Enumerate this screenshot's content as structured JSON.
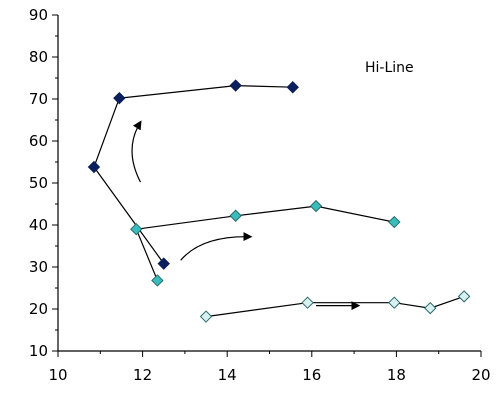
{
  "chart_data": {
    "type": "scatter",
    "title": "",
    "xlabel": "",
    "ylabel": "",
    "xlim": [
      10,
      20
    ],
    "ylim": [
      10,
      90
    ],
    "x_ticks": [
      10,
      12,
      14,
      16,
      18,
      20
    ],
    "y_ticks": [
      10,
      20,
      30,
      40,
      50,
      60,
      70,
      80,
      90
    ],
    "grid": false,
    "legend": "none",
    "annotation": "Hi-Line",
    "series": [
      {
        "color": "#0b1f5c",
        "marker": "diamond-filled",
        "points": [
          [
            12.5,
            30.8
          ],
          [
            10.85,
            53.8
          ],
          [
            11.45,
            70.2
          ],
          [
            14.2,
            73.2
          ],
          [
            15.55,
            72.8
          ]
        ]
      },
      {
        "color": "#3bbcbc",
        "marker": "diamond-filled",
        "points": [
          [
            12.35,
            26.8
          ],
          [
            11.85,
            39.0
          ],
          [
            14.2,
            42.2
          ],
          [
            16.1,
            44.5
          ],
          [
            17.95,
            40.7
          ]
        ]
      },
      {
        "color": "#d8f0f0",
        "marker": "diamond-light",
        "points": [
          [
            13.5,
            18.2
          ],
          [
            15.9,
            21.5
          ],
          [
            17.95,
            21.5
          ],
          [
            18.8,
            20.2
          ],
          [
            19.6,
            23.0
          ]
        ]
      }
    ],
    "arrows": [
      {
        "from": [
          11.95,
          50.2
        ],
        "via": [
          11.55,
          58.0
        ],
        "to": [
          11.95,
          64.5
        ]
      },
      {
        "from": [
          12.9,
          31.6
        ],
        "via": [
          13.4,
          37.5
        ],
        "to": [
          14.55,
          37.2
        ]
      },
      {
        "from": [
          16.1,
          20.8
        ],
        "via": [
          16.6,
          20.8
        ],
        "to": [
          17.1,
          20.8
        ]
      }
    ]
  }
}
